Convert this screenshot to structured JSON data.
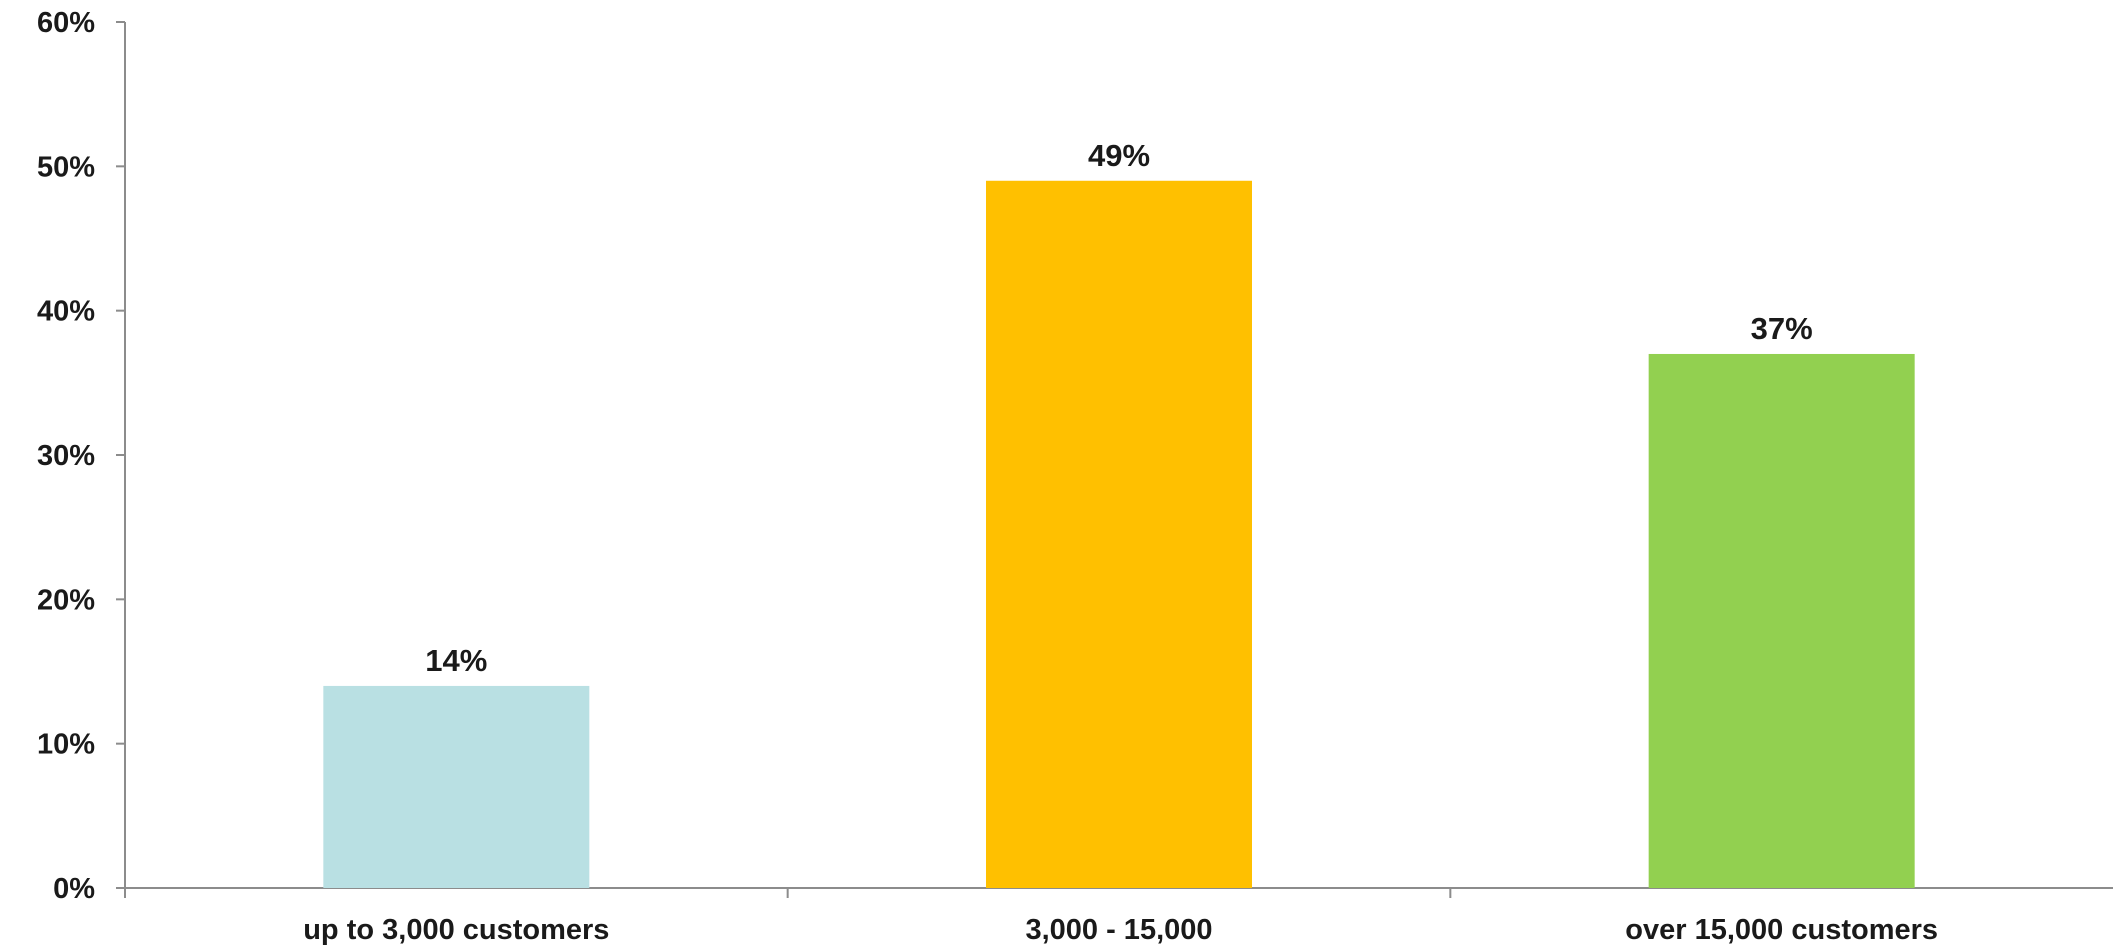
{
  "chart_data": {
    "type": "bar",
    "categories": [
      "up to 3,000 customers",
      "3,000 - 15,000",
      "over 15,000 customers"
    ],
    "values": [
      14,
      49,
      37
    ],
    "data_labels": [
      "14%",
      "49%",
      "37%"
    ],
    "colors": [
      "#b9e0e3",
      "#ffc000",
      "#92d050"
    ],
    "ylim": [
      0,
      60
    ],
    "yticks": [
      0,
      10,
      20,
      30,
      40,
      50,
      60
    ],
    "ytick_labels": [
      "0%",
      "10%",
      "20%",
      "30%",
      "40%",
      "50%",
      "60%"
    ],
    "grid": false,
    "legend": "none",
    "axis_color": "#8c8c8c",
    "text_color": "#1a1a1a"
  }
}
